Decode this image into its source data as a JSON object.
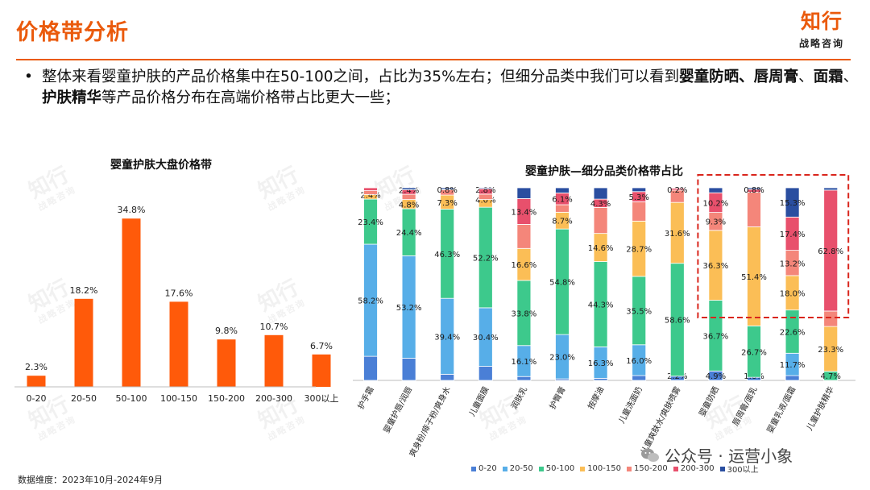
{
  "header": {
    "title": "价格带分析",
    "brand_name": "知行",
    "brand_sub": "战略咨询"
  },
  "summary": {
    "bullet": "•",
    "text_1": "整体来看婴童护肤的产品价格集中在50-100之间，占比为35%左右；但细分品类中我们可以看到",
    "bold_1": "婴童防晒、唇周膏",
    "text_2": "、",
    "bold_2": "面霜",
    "text_3": "、",
    "bold_3": "护肤精华",
    "text_4": "等产品价格分布在高端价格带占比更大一些；"
  },
  "watermark": {
    "name": "知行",
    "sub": "战略咨询"
  },
  "footnote": "数据维度：2023年10月-2024年9月",
  "source": "公众号 · 运营小象",
  "colors": {
    "accent": "#ea5a0c",
    "bar_left": "#ff5a0a",
    "bands": [
      "#4a7fd6",
      "#57aee8",
      "#3dc98c",
      "#fbbe56",
      "#f4867a",
      "#e8506c",
      "#2a4ea0"
    ]
  },
  "chart_data": [
    {
      "type": "bar",
      "title": "婴童护肤大盘价格带",
      "categories": [
        "0-20",
        "20-50",
        "50-100",
        "100-150",
        "150-200",
        "200-300",
        "300以上"
      ],
      "values": [
        2.3,
        18.2,
        34.8,
        17.6,
        9.8,
        10.7,
        6.7
      ],
      "value_labels": [
        "2.3%",
        "18.2%",
        "34.8%",
        "17.6%",
        "9.8%",
        "10.7%",
        "6.7%"
      ],
      "ylim": [
        0,
        40
      ],
      "grid": false
    },
    {
      "type": "bar",
      "stacked": true,
      "percent": true,
      "title": "婴童护肤—细分品类价格带占比",
      "categories": [
        "护手霜",
        "婴童护唇/润唇",
        "爽身粉/痱子粉/爽身水",
        "儿童面膜",
        "润肤乳",
        "护臀膏",
        "按摩油",
        "儿童洗面奶",
        "儿童爽肤水/爽肤喷雾",
        "婴童防晒",
        "唇周膏/面乳",
        "婴童乳液/面霜",
        "儿童护肤精华"
      ],
      "series": [
        {
          "name": "0-20",
          "values": [
            12.5,
            11.5,
            3.2,
            7.3,
            2.0,
            0.8,
            1.1,
            2.5,
            2.2,
            4.9,
            1.6,
            2.5,
            0.0
          ]
        },
        {
          "name": "20-50",
          "values": [
            58.2,
            53.2,
            39.4,
            30.4,
            16.1,
            23.0,
            16.3,
            16.0,
            0.0,
            0.0,
            0.0,
            11.7,
            0.0
          ]
        },
        {
          "name": "50-100",
          "values": [
            23.4,
            24.4,
            46.3,
            52.2,
            33.8,
            54.8,
            44.3,
            35.5,
            58.6,
            36.7,
            26.7,
            22.6,
            4.7
          ]
        },
        {
          "name": "100-150",
          "values": [
            2.4,
            4.8,
            7.3,
            4.0,
            16.6,
            8.7,
            14.6,
            28.7,
            31.6,
            36.3,
            51.4,
            18.0,
            23.3
          ]
        },
        {
          "name": "150-200",
          "values": [
            2.0,
            2.7,
            2.8,
            2.8,
            12.5,
            3.9,
            13.5,
            10.0,
            6.4,
            9.3,
            18.0,
            13.2,
            8.0
          ]
        },
        {
          "name": "200-300",
          "values": [
            1.5,
            2.4,
            0.2,
            2.8,
            13.4,
            6.1,
            4.3,
            5.3,
            1.0,
            10.2,
            1.5,
            17.4,
            62.8
          ]
        },
        {
          "name": "300以上",
          "values": [
            0.0,
            1.0,
            0.8,
            0.5,
            5.6,
            2.7,
            5.9,
            2.0,
            0.2,
            2.6,
            0.8,
            15.3,
            1.2
          ]
        }
      ],
      "data_labels": [
        [
          "",
          "58.2%",
          "23.4%",
          "2.4%",
          "",
          "",
          ""
        ],
        [
          "",
          "53.2%",
          "24.4%",
          "4.8%",
          "",
          "2.4%",
          ""
        ],
        [
          "",
          "39.4%",
          "46.3%",
          "7.3%",
          "",
          "",
          "0.8%"
        ],
        [
          "",
          "30.4%",
          "52.2%",
          "4.0%",
          "",
          "2.8%",
          ""
        ],
        [
          "",
          "16.1%",
          "33.8%",
          "16.6%",
          "",
          "13.4%",
          ""
        ],
        [
          "",
          "23.0%",
          "54.8%",
          "8.7%",
          "",
          "6.1%",
          ""
        ],
        [
          "",
          "16.3%",
          "44.3%",
          "14.6%",
          "",
          "4.3%",
          ""
        ],
        [
          "",
          "16.0%",
          "35.5%",
          "28.7%",
          "",
          "5.3%",
          ""
        ],
        [
          "2.2%",
          "",
          "58.6%",
          "31.6%",
          "",
          "",
          "0.2%"
        ],
        [
          "4.9%",
          "",
          "36.7%",
          "36.3%",
          "9.3%",
          "10.2%",
          ""
        ],
        [
          "1.6%",
          "",
          "26.7%",
          "51.4%",
          "",
          "",
          "0.8%"
        ],
        [
          "",
          "11.7%",
          "22.6%",
          "18.0%",
          "13.2%",
          "17.4%",
          "15.3%"
        ],
        [
          "",
          "",
          "4.7%",
          "23.3%",
          "",
          "62.8%",
          ""
        ]
      ],
      "ylim": [
        0,
        100
      ],
      "legend": "bottom",
      "highlighted_categories": [
        "婴童防晒",
        "唇周膏/面乳",
        "婴童乳液/面霜",
        "儿童护肤精华"
      ]
    }
  ]
}
